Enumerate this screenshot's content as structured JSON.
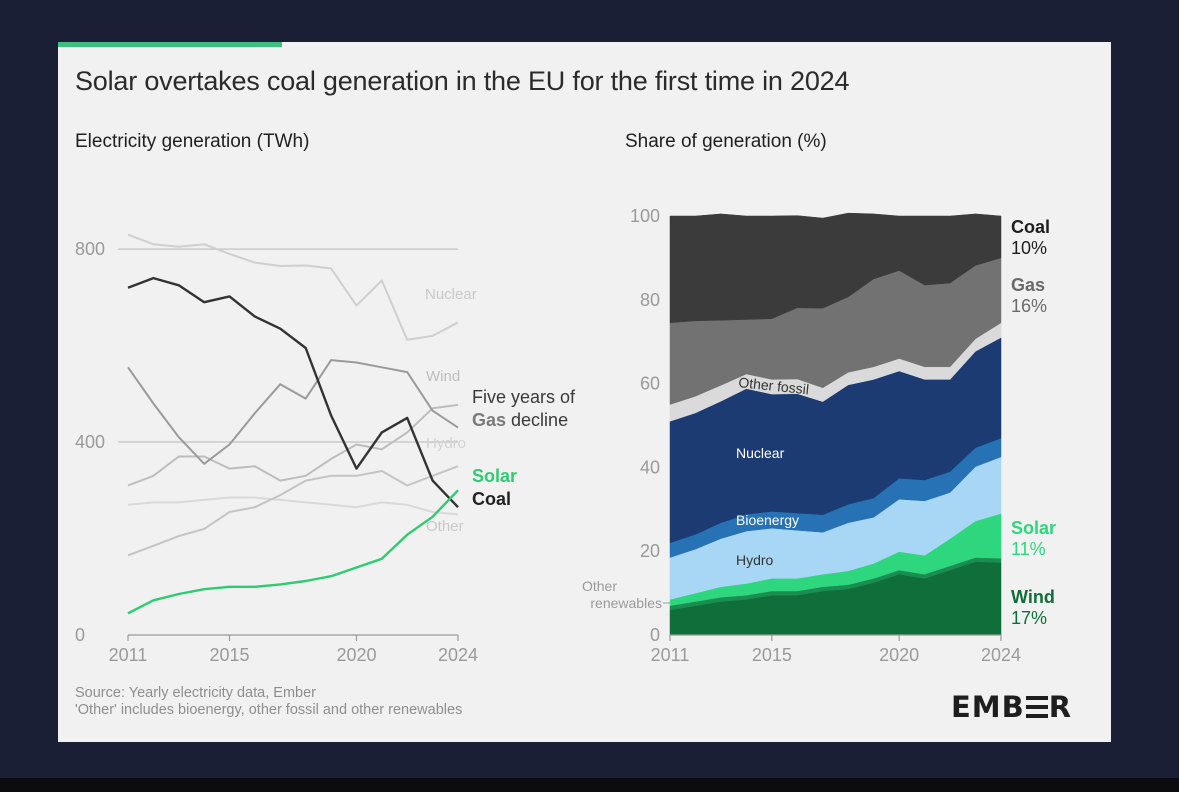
{
  "header": {
    "title": "Solar overtakes coal generation in the EU for the first time in 2024",
    "accent_color": "#3fbf7f"
  },
  "footer": {
    "source": "Source: Yearly electricity data, Ember",
    "note": "'Other' includes bioenergy, other fossil and other renewables"
  },
  "logo": {
    "brand": "EMBER",
    "text_before": "EMB",
    "text_after": "R"
  },
  "chart_data": [
    {
      "type": "line",
      "title": "Electricity generation (TWh)",
      "x": [
        2011,
        2012,
        2013,
        2014,
        2015,
        2016,
        2017,
        2018,
        2019,
        2020,
        2021,
        2022,
        2023,
        2024
      ],
      "xticks": [
        "2011",
        "2015",
        "2020",
        "2024"
      ],
      "yticks": [
        "0",
        "400",
        "800"
      ],
      "ylim": [
        0,
        850
      ],
      "grid": true,
      "series": [
        {
          "name": "Nuclear",
          "color": "#cfcfcf",
          "values": [
            830,
            810,
            805,
            810,
            790,
            772,
            765,
            766,
            760,
            683,
            735,
            612,
            620,
            648
          ]
        },
        {
          "name": "Wind",
          "color": "#bdbdbd",
          "values": [
            310,
            330,
            370,
            370,
            345,
            350,
            320,
            330,
            365,
            395,
            385,
            420,
            470,
            477
          ]
        },
        {
          "name": "Gas",
          "color": "#9a9a9a",
          "values": [
            555,
            480,
            410,
            355,
            395,
            460,
            520,
            490,
            570,
            565,
            555,
            545,
            465,
            430
          ]
        },
        {
          "name": "Hydro",
          "color": "#d9d9d9",
          "values": [
            270,
            275,
            275,
            280,
            285,
            285,
            280,
            275,
            270,
            265,
            275,
            270,
            255,
            250
          ]
        },
        {
          "name": "Other",
          "color": "#c4c4c4",
          "values": [
            165,
            185,
            205,
            220,
            255,
            265,
            290,
            320,
            330,
            330,
            340,
            310,
            330,
            350
          ]
        },
        {
          "name": "Coal",
          "color": "#333333",
          "values": [
            720,
            740,
            725,
            690,
            702,
            660,
            635,
            595,
            455,
            345,
            420,
            450,
            320,
            265
          ]
        },
        {
          "name": "Solar",
          "color": "#2ecc71",
          "values": [
            45,
            72,
            85,
            95,
            100,
            100,
            105,
            112,
            122,
            140,
            158,
            208,
            245,
            300
          ]
        }
      ],
      "labels": {
        "nuclear": "Nuclear",
        "wind": "Wind",
        "hydro": "Hydro",
        "other": "Other",
        "solar": "Solar",
        "coal": "Coal",
        "gas_annotation_line1": "Five years of",
        "gas_annotation_gas": "Gas",
        "gas_annotation_rest": " decline"
      }
    },
    {
      "type": "area",
      "stacked": true,
      "title": "Share of generation (%)",
      "x": [
        2011,
        2012,
        2013,
        2014,
        2015,
        2016,
        2017,
        2018,
        2019,
        2020,
        2021,
        2022,
        2023,
        2024
      ],
      "xticks": [
        "2011",
        "2015",
        "2020",
        "2024"
      ],
      "yticks": [
        "0",
        "20",
        "40",
        "60",
        "80",
        "100"
      ],
      "ylim": [
        0,
        100
      ],
      "series": [
        {
          "name": "Wind",
          "color": "#0f6e3a",
          "values": [
            6,
            7,
            8,
            8.5,
            9.5,
            9.5,
            10.5,
            11,
            12.5,
            14.5,
            13.5,
            15.5,
            17.5,
            17.3
          ]
        },
        {
          "name": "Other renewables",
          "color": "#1a8d50",
          "values": [
            1,
            1,
            1,
            1,
            1,
            1,
            1,
            1,
            1,
            1,
            1,
            1,
            1,
            1
          ]
        },
        {
          "name": "Solar",
          "color": "#2ed67e",
          "values": [
            1.5,
            2,
            2.5,
            2.8,
            3,
            3,
            3,
            3.3,
            3.6,
            4.4,
            4.5,
            6.5,
            8.7,
            10.7
          ]
        },
        {
          "name": "Hydro",
          "color": "#a8d7f5",
          "values": [
            10,
            10.5,
            11.5,
            12.5,
            12,
            11.5,
            10,
            11.5,
            11,
            12.5,
            13,
            11,
            13,
            13.5
          ]
        },
        {
          "name": "Bioenergy",
          "color": "#2672b5",
          "values": [
            3.5,
            3.5,
            3.8,
            4,
            4,
            4.1,
            4.2,
            4.4,
            4.6,
            5,
            5,
            5,
            4.5,
            4.5
          ]
        },
        {
          "name": "Nuclear",
          "color": "#1c3b73",
          "values": [
            29,
            29,
            29,
            30,
            28,
            28.5,
            27,
            28.5,
            28.3,
            25.6,
            24,
            22,
            23,
            24
          ]
        },
        {
          "name": "Other fossil",
          "color": "#dadada",
          "values": [
            4,
            4,
            3.8,
            3.5,
            3.5,
            3.5,
            3.3,
            3,
            3,
            3,
            3,
            3,
            3,
            3.5
          ]
        },
        {
          "name": "Gas",
          "color": "#727272",
          "values": [
            19.5,
            18,
            15.5,
            13,
            14.5,
            17,
            19,
            18,
            21,
            21,
            19.5,
            20,
            17.5,
            15.5
          ]
        },
        {
          "name": "Coal",
          "color": "#3b3b3b",
          "values": [
            25.5,
            25,
            25.4,
            24.7,
            24.5,
            22,
            21.5,
            20,
            15.5,
            13,
            16.5,
            16,
            12.3,
            10
          ]
        }
      ],
      "labels": {
        "coal": "Coal",
        "coal_value": "10%",
        "gas": "Gas",
        "gas_value": "16%",
        "solar": "Solar",
        "solar_value": "11%",
        "wind": "Wind",
        "wind_value": "17%",
        "other_fossil": "Other fossil",
        "nuclear": "Nuclear",
        "bioenergy": "Bioenergy",
        "hydro": "Hydro",
        "other_renewables_line1": "Other",
        "other_renewables_line2": "renewables"
      }
    }
  ]
}
